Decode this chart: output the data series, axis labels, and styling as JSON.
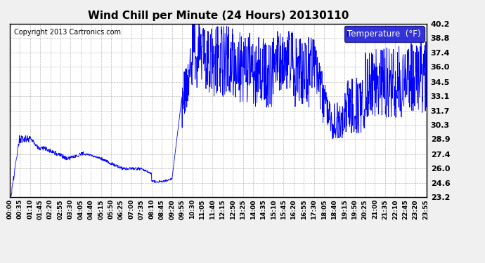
{
  "title": "Wind Chill per Minute (24 Hours) 20130110",
  "copyright_text": "Copyright 2013 Cartronics.com",
  "legend_label": "Temperature  (°F)",
  "yticks": [
    23.2,
    24.6,
    26.0,
    27.4,
    28.9,
    30.3,
    31.7,
    33.1,
    34.5,
    36.0,
    37.4,
    38.8,
    40.2
  ],
  "ylim": [
    23.2,
    40.2
  ],
  "line_color": "#0000FF",
  "background_color": "#F0F0F0",
  "plot_bg_color": "#FFFFFF",
  "grid_color": "#AAAAAA",
  "legend_bg": "#0000CD",
  "legend_text_color": "#FFFFFF",
  "title_color": "#000000",
  "figsize": [
    6.9,
    3.75
  ],
  "dpi": 100,
  "xtick_labels": [
    "00:00",
    "00:35",
    "01:10",
    "01:45",
    "02:20",
    "02:55",
    "03:30",
    "04:05",
    "04:40",
    "05:15",
    "05:50",
    "06:25",
    "07:00",
    "07:35",
    "08:10",
    "08:45",
    "09:20",
    "09:55",
    "10:30",
    "11:05",
    "11:40",
    "12:15",
    "12:50",
    "13:25",
    "14:00",
    "14:35",
    "15:10",
    "15:45",
    "16:20",
    "16:55",
    "17:30",
    "18:05",
    "18:40",
    "19:15",
    "19:50",
    "20:25",
    "21:00",
    "21:35",
    "22:10",
    "22:45",
    "23:20",
    "23:55"
  ]
}
